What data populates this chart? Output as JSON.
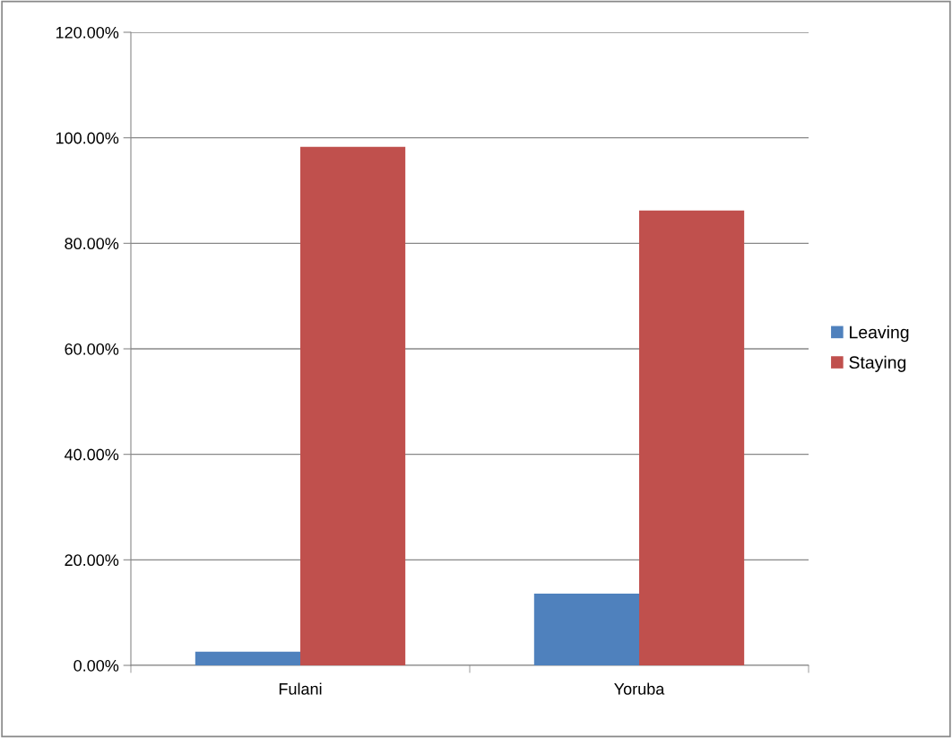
{
  "chart_data": {
    "type": "bar",
    "categories": [
      "Fulani",
      "Yoruba"
    ],
    "series": [
      {
        "name": "Leaving",
        "color": "#4f81bd",
        "values": [
          2.6,
          13.6
        ]
      },
      {
        "name": "Staying",
        "color": "#c0504d",
        "values": [
          98.3,
          86.2
        ]
      }
    ],
    "ylim": [
      0,
      120
    ],
    "yticks": [
      {
        "value": 0,
        "label": "0.00%"
      },
      {
        "value": 20,
        "label": "20.00%"
      },
      {
        "value": 40,
        "label": "40.00%"
      },
      {
        "value": 60,
        "label": "60.00%"
      },
      {
        "value": 80,
        "label": "80.00%"
      },
      {
        "value": 100,
        "label": "100.00%"
      },
      {
        "value": 120,
        "label": "120.00%"
      }
    ],
    "grid": "y",
    "legend": "right"
  }
}
